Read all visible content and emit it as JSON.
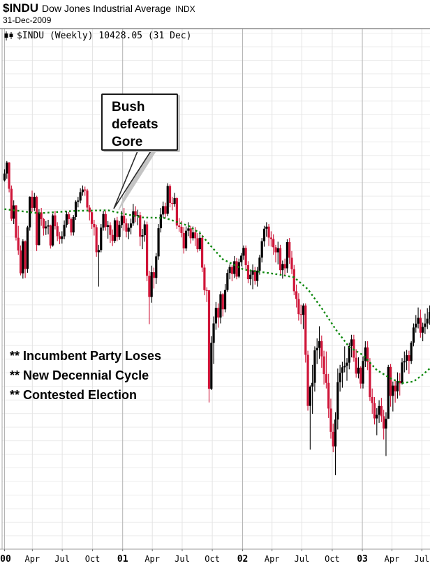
{
  "header": {
    "symbol": "$INDU",
    "name": "Dow Jones Industrial Average",
    "exchange": "INDX",
    "date": "31-Dec-2009"
  },
  "legend": {
    "icon": "candlestick-icon",
    "text": "$INDU (Weekly) 10428.05 (31 Dec)"
  },
  "annotations": {
    "bubble": {
      "lines": [
        "Bush",
        "defeats",
        "Gore"
      ],
      "points_to": "Nov-Dec 2000 candles"
    },
    "notes": [
      "** Incumbent Party Loses",
      "** New Decennial Cycle",
      "** Contested Election"
    ]
  },
  "chart_data": {
    "type": "candlestick",
    "title": "$INDU (Weekly) 10428.05 (31 Dec)",
    "symbol": "$INDU",
    "timeframe": "Weekly",
    "scale": "log",
    "grid": true,
    "x_range": [
      "2000-01-07",
      "2003-07-25"
    ],
    "y_domain": [
      6420,
      14430
    ],
    "x_ticks": [
      {
        "label": "00",
        "week": 0,
        "year": true
      },
      {
        "label": "Apr",
        "week": 12.1,
        "year": false
      },
      {
        "label": "Jul",
        "week": 25.1,
        "year": false
      },
      {
        "label": "Oct",
        "week": 38.3,
        "year": false
      },
      {
        "label": "01",
        "week": 51.4,
        "year": true
      },
      {
        "label": "Apr",
        "week": 64.3,
        "year": false
      },
      {
        "label": "Jul",
        "week": 77.3,
        "year": false
      },
      {
        "label": "Oct",
        "week": 90.4,
        "year": false
      },
      {
        "label": "02",
        "week": 103.6,
        "year": true
      },
      {
        "label": "Apr",
        "week": 116.4,
        "year": false
      },
      {
        "label": "Jul",
        "week": 129.4,
        "year": false
      },
      {
        "label": "Oct",
        "week": 142.6,
        "year": false
      },
      {
        "label": "03",
        "week": 155.7,
        "year": true
      },
      {
        "label": "Apr",
        "week": 168.6,
        "year": false
      },
      {
        "label": "Jul",
        "week": 181.6,
        "year": false
      }
    ],
    "colors": {
      "up": "#000000",
      "down": "#cf1438",
      "ma": "#0a870a",
      "grid_h": "#ececec",
      "grid_q": "#e3e3e3",
      "grid_y": "#b3b3b3",
      "border": "#8c8c8c"
    },
    "first_open": 11400,
    "weeks_hlc": [
      [
        11600,
        11380,
        11523
      ],
      [
        11750,
        11430,
        11723
      ],
      [
        11730,
        11190,
        11252
      ],
      [
        11310,
        10700,
        10738
      ],
      [
        11050,
        10650,
        10963
      ],
      [
        10970,
        10380,
        10425
      ],
      [
        10620,
        10150,
        10220
      ],
      [
        10300,
        9830,
        9862
      ],
      [
        10400,
        9780,
        10367
      ],
      [
        10380,
        9790,
        9929
      ],
      [
        10620,
        9870,
        10595
      ],
      [
        11120,
        10540,
        11113
      ],
      [
        11220,
        10850,
        10922
      ],
      [
        11180,
        10870,
        11111
      ],
      [
        11130,
        10210,
        10306
      ],
      [
        10900,
        10300,
        10844
      ],
      [
        10920,
        10620,
        10733
      ],
      [
        10750,
        10460,
        10577
      ],
      [
        10700,
        10470,
        10609
      ],
      [
        10720,
        10480,
        10626
      ],
      [
        10640,
        10250,
        10300
      ],
      [
        10820,
        10280,
        10794
      ],
      [
        10870,
        10560,
        10614
      ],
      [
        10680,
        10370,
        10450
      ],
      [
        10520,
        10320,
        10404
      ],
      [
        10530,
        10330,
        10448
      ],
      [
        10710,
        10400,
        10636
      ],
      [
        10870,
        10590,
        10813
      ],
      [
        10850,
        10650,
        10733
      ],
      [
        10760,
        10460,
        10511
      ],
      [
        10800,
        10460,
        10767
      ],
      [
        11050,
        10720,
        11028
      ],
      [
        11110,
        10930,
        11047
      ],
      [
        11260,
        11000,
        11193
      ],
      [
        11310,
        11130,
        11239
      ],
      [
        11290,
        11130,
        11221
      ],
      [
        11250,
        10880,
        10927
      ],
      [
        10970,
        10710,
        10847
      ],
      [
        10890,
        10570,
        10651
      ],
      [
        10720,
        10460,
        10597
      ],
      [
        10640,
        10120,
        10192
      ],
      [
        10310,
        9660,
        10226
      ],
      [
        10650,
        10190,
        10590
      ],
      [
        10870,
        10540,
        10817
      ],
      [
        10870,
        10540,
        10603
      ],
      [
        10700,
        10410,
        10630
      ],
      [
        10680,
        10340,
        10470
      ],
      [
        10560,
        10290,
        10374
      ],
      [
        10750,
        10340,
        10712
      ],
      [
        10770,
        10370,
        10435
      ],
      [
        10700,
        10390,
        10635
      ],
      [
        10870,
        10580,
        10788
      ],
      [
        10920,
        10540,
        10662
      ],
      [
        10740,
        10430,
        10525
      ],
      [
        10660,
        10400,
        10588
      ],
      [
        10740,
        10480,
        10660
      ],
      [
        10990,
        10620,
        10864
      ],
      [
        10950,
        10680,
        10781
      ],
      [
        10890,
        10630,
        10799
      ],
      [
        10850,
        10290,
        10442
      ],
      [
        10570,
        10240,
        10466
      ],
      [
        10710,
        10360,
        10645
      ],
      [
        10690,
        9740,
        9823
      ],
      [
        9900,
        9110,
        9504
      ],
      [
        9980,
        9420,
        9879
      ],
      [
        9950,
        9630,
        9791
      ],
      [
        10180,
        9700,
        10126
      ],
      [
        10650,
        10070,
        10580
      ],
      [
        10920,
        10510,
        10810
      ],
      [
        11030,
        10750,
        10951
      ],
      [
        11010,
        10750,
        10821
      ],
      [
        11350,
        10780,
        11301
      ],
      [
        11330,
        10930,
        11005
      ],
      [
        11110,
        10880,
        10990
      ],
      [
        11180,
        10940,
        11090
      ],
      [
        11100,
        10570,
        10624
      ],
      [
        10750,
        10520,
        10604
      ],
      [
        10700,
        10430,
        10502
      ],
      [
        10600,
        10170,
        10252
      ],
      [
        10610,
        10210,
        10539
      ],
      [
        10680,
        10450,
        10577
      ],
      [
        10620,
        10330,
        10417
      ],
      [
        10610,
        10380,
        10512
      ],
      [
        10600,
        10290,
        10416
      ],
      [
        10500,
        10190,
        10240
      ],
      [
        10530,
        10210,
        10423
      ],
      [
        10470,
        9880,
        9950
      ],
      [
        10000,
        9530,
        9606
      ],
      [
        9650,
        9430,
        9605
      ],
      [
        9605,
        8062,
        8236
      ],
      [
        8940,
        8220,
        8848
      ],
      [
        9220,
        8560,
        9120
      ],
      [
        9430,
        9030,
        9344
      ],
      [
        9410,
        9060,
        9204
      ],
      [
        9590,
        9120,
        9545
      ],
      [
        9560,
        9220,
        9323
      ],
      [
        9700,
        9280,
        9608
      ],
      [
        9920,
        9580,
        9867
      ],
      [
        10000,
        9770,
        9960
      ],
      [
        9990,
        9740,
        9852
      ],
      [
        10130,
        9790,
        10049
      ],
      [
        10100,
        9770,
        9811
      ],
      [
        10090,
        9790,
        10035
      ],
      [
        10180,
        9970,
        10137
      ],
      [
        10300,
        10070,
        10260
      ],
      [
        10300,
        9920,
        9988
      ],
      [
        10050,
        9710,
        9772
      ],
      [
        9920,
        9680,
        9840
      ],
      [
        10000,
        9620,
        9907
      ],
      [
        9960,
        9690,
        9744
      ],
      [
        9960,
        9660,
        9903
      ],
      [
        10150,
        9840,
        10106
      ],
      [
        10420,
        10030,
        10368
      ],
      [
        10620,
        10280,
        10572
      ],
      [
        10680,
        10440,
        10607
      ],
      [
        10650,
        10290,
        10427
      ],
      [
        10530,
        10280,
        10404
      ],
      [
        10480,
        10150,
        10271
      ],
      [
        10310,
        10030,
        10190
      ],
      [
        10360,
        10000,
        10257
      ],
      [
        10310,
        9840,
        9910
      ],
      [
        10060,
        9780,
        10006
      ],
      [
        10090,
        9830,
        9939
      ],
      [
        10400,
        9870,
        10353
      ],
      [
        10420,
        10010,
        10104
      ],
      [
        10210,
        9850,
        9925
      ],
      [
        9990,
        9530,
        9589
      ],
      [
        9690,
        9350,
        9474
      ],
      [
        9560,
        9160,
        9253
      ],
      [
        9390,
        9110,
        9243
      ],
      [
        9410,
        9040,
        9379
      ],
      [
        9410,
        8580,
        8684
      ],
      [
        8740,
        7960,
        8019
      ],
      [
        8280,
        7490,
        8264
      ],
      [
        8550,
        7920,
        8313
      ],
      [
        8800,
        8200,
        8745
      ],
      [
        8910,
        8560,
        8778
      ],
      [
        9080,
        8630,
        8872
      ],
      [
        8950,
        8510,
        8663
      ],
      [
        8740,
        8290,
        8427
      ],
      [
        8730,
        8240,
        8312
      ],
      [
        8430,
        7870,
        7986
      ],
      [
        8110,
        7620,
        7701
      ],
      [
        7800,
        7460,
        7528
      ],
      [
        7940,
        7197,
        7850
      ],
      [
        8500,
        7730,
        8322
      ],
      [
        8550,
        8200,
        8443
      ],
      [
        8590,
        8250,
        8517
      ],
      [
        8800,
        8450,
        8537
      ],
      [
        8640,
        8340,
        8579
      ],
      [
        8850,
        8490,
        8804
      ],
      [
        8960,
        8650,
        8896
      ],
      [
        8960,
        8590,
        8645
      ],
      [
        8760,
        8380,
        8433
      ],
      [
        8650,
        8370,
        8512
      ],
      [
        8530,
        8240,
        8303
      ],
      [
        8660,
        8240,
        8602
      ],
      [
        8870,
        8520,
        8785
      ],
      [
        8870,
        8480,
        8586
      ],
      [
        8640,
        8080,
        8131
      ],
      [
        8240,
        7920,
        8054
      ],
      [
        8130,
        7790,
        7864
      ],
      [
        7990,
        7660,
        7908
      ],
      [
        8090,
        7810,
        8018
      ],
      [
        8120,
        7820,
        7891
      ],
      [
        7970,
        7610,
        7740
      ],
      [
        7940,
        7416,
        7859
      ],
      [
        8550,
        7860,
        8522
      ],
      [
        8560,
        8010,
        8145
      ],
      [
        8330,
        7950,
        8277
      ],
      [
        8340,
        8060,
        8203
      ],
      [
        8450,
        8110,
        8337
      ],
      [
        8440,
        8150,
        8306
      ],
      [
        8640,
        8290,
        8582
      ],
      [
        8730,
        8450,
        8604
      ],
      [
        8750,
        8480,
        8679
      ],
      [
        8740,
        8430,
        8601
      ],
      [
        8870,
        8560,
        8850
      ],
      [
        9120,
        8800,
        9062
      ],
      [
        9240,
        8990,
        9117
      ],
      [
        9350,
        9050,
        9200
      ],
      [
        9320,
        8920,
        8989
      ],
      [
        9130,
        8870,
        9070
      ],
      [
        9260,
        8970,
        9119
      ],
      [
        9340,
        9040,
        9188
      ],
      [
        9380,
        9100,
        9284
      ]
    ],
    "ma40_anchors": [
      [
        0,
        10900
      ],
      [
        15,
        10830
      ],
      [
        30,
        10870
      ],
      [
        45,
        10880
      ],
      [
        52,
        10820
      ],
      [
        60,
        10760
      ],
      [
        70,
        10750
      ],
      [
        80,
        10620
      ],
      [
        85,
        10500
      ],
      [
        90,
        10280
      ],
      [
        95,
        10080
      ],
      [
        104,
        9920
      ],
      [
        112,
        9880
      ],
      [
        120,
        9840
      ],
      [
        126,
        9800
      ],
      [
        132,
        9620
      ],
      [
        138,
        9340
      ],
      [
        144,
        9040
      ],
      [
        150,
        8790
      ],
      [
        156,
        8680
      ],
      [
        162,
        8480
      ],
      [
        168,
        8370
      ],
      [
        173,
        8310
      ],
      [
        178,
        8330
      ],
      [
        182,
        8420
      ],
      [
        185,
        8500
      ]
    ],
    "legend_position": "top-left",
    "ma_note": "dotted green 40-week moving average"
  }
}
